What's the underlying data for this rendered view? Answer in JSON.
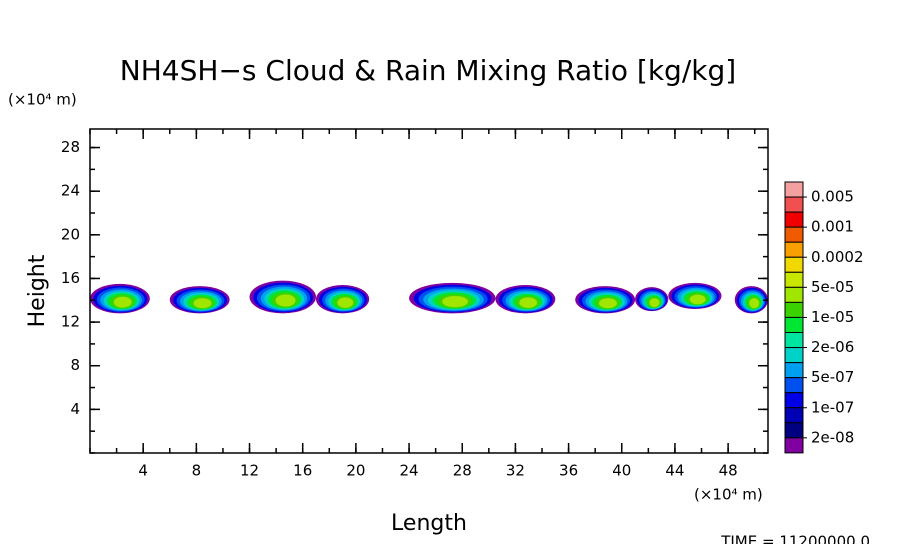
{
  "chart_data": {
    "type": "contour",
    "title": "NH4SH−s Cloud & Rain Mixing Ratio [kg/kg]",
    "x_label": "Length",
    "y_label": "Height",
    "x_unit": "(×10⁴ m)",
    "y_unit": "(×10⁴ m)",
    "footer": "TIME = 11200000.0",
    "xlim": [
      0,
      51
    ],
    "ylim": [
      0,
      29.7
    ],
    "xticks": [
      4,
      8,
      12,
      16,
      20,
      24,
      28,
      32,
      36,
      40,
      44,
      48
    ],
    "yticks": [
      4,
      8,
      12,
      16,
      20,
      24,
      28
    ],
    "regions": [
      {
        "x": [
          0,
          4.5
        ],
        "y": [
          12.8,
          15.5
        ]
      },
      {
        "x": [
          6,
          10.5
        ],
        "y": [
          12.8,
          15.3
        ]
      },
      {
        "x": [
          12,
          17
        ],
        "y": [
          12.8,
          15.8
        ]
      },
      {
        "x": [
          17,
          21
        ],
        "y": [
          12.8,
          15.4
        ]
      },
      {
        "x": [
          24,
          30.5
        ],
        "y": [
          12.8,
          15.6
        ]
      },
      {
        "x": [
          30.5,
          35
        ],
        "y": [
          12.8,
          15.4
        ]
      },
      {
        "x": [
          36.5,
          41
        ],
        "y": [
          12.8,
          15.3
        ]
      },
      {
        "x": [
          41,
          43.5
        ],
        "y": [
          13,
          15.2
        ]
      },
      {
        "x": [
          43.5,
          47.5
        ],
        "y": [
          13.2,
          15.6
        ]
      },
      {
        "x": [
          48.5,
          51
        ],
        "y": [
          12.8,
          15.3
        ]
      }
    ],
    "colorbar": {
      "colors": [
        "#f4a0a0",
        "#f05050",
        "#f00000",
        "#f05a00",
        "#f8a000",
        "#f0d800",
        "#c8e600",
        "#a0e600",
        "#3cd200",
        "#00e632",
        "#00e6a0",
        "#00d2c8",
        "#00a0f0",
        "#0050f0",
        "#0000e6",
        "#0000b4",
        "#000080",
        "#8000a0"
      ],
      "levels": [
        0.005,
        0.001,
        0.0002,
        {
          "value": 5e-05,
          "label": "5e-05"
        },
        {
          "value": 1e-05,
          "label": "1e-05"
        },
        {
          "value": 2e-06,
          "label": "2e-06"
        },
        {
          "value": 5e-07,
          "label": "5e-07"
        },
        {
          "value": 1e-07,
          "label": "1e-07"
        },
        {
          "value": 2e-08,
          "label": "2e-08"
        }
      ]
    }
  }
}
